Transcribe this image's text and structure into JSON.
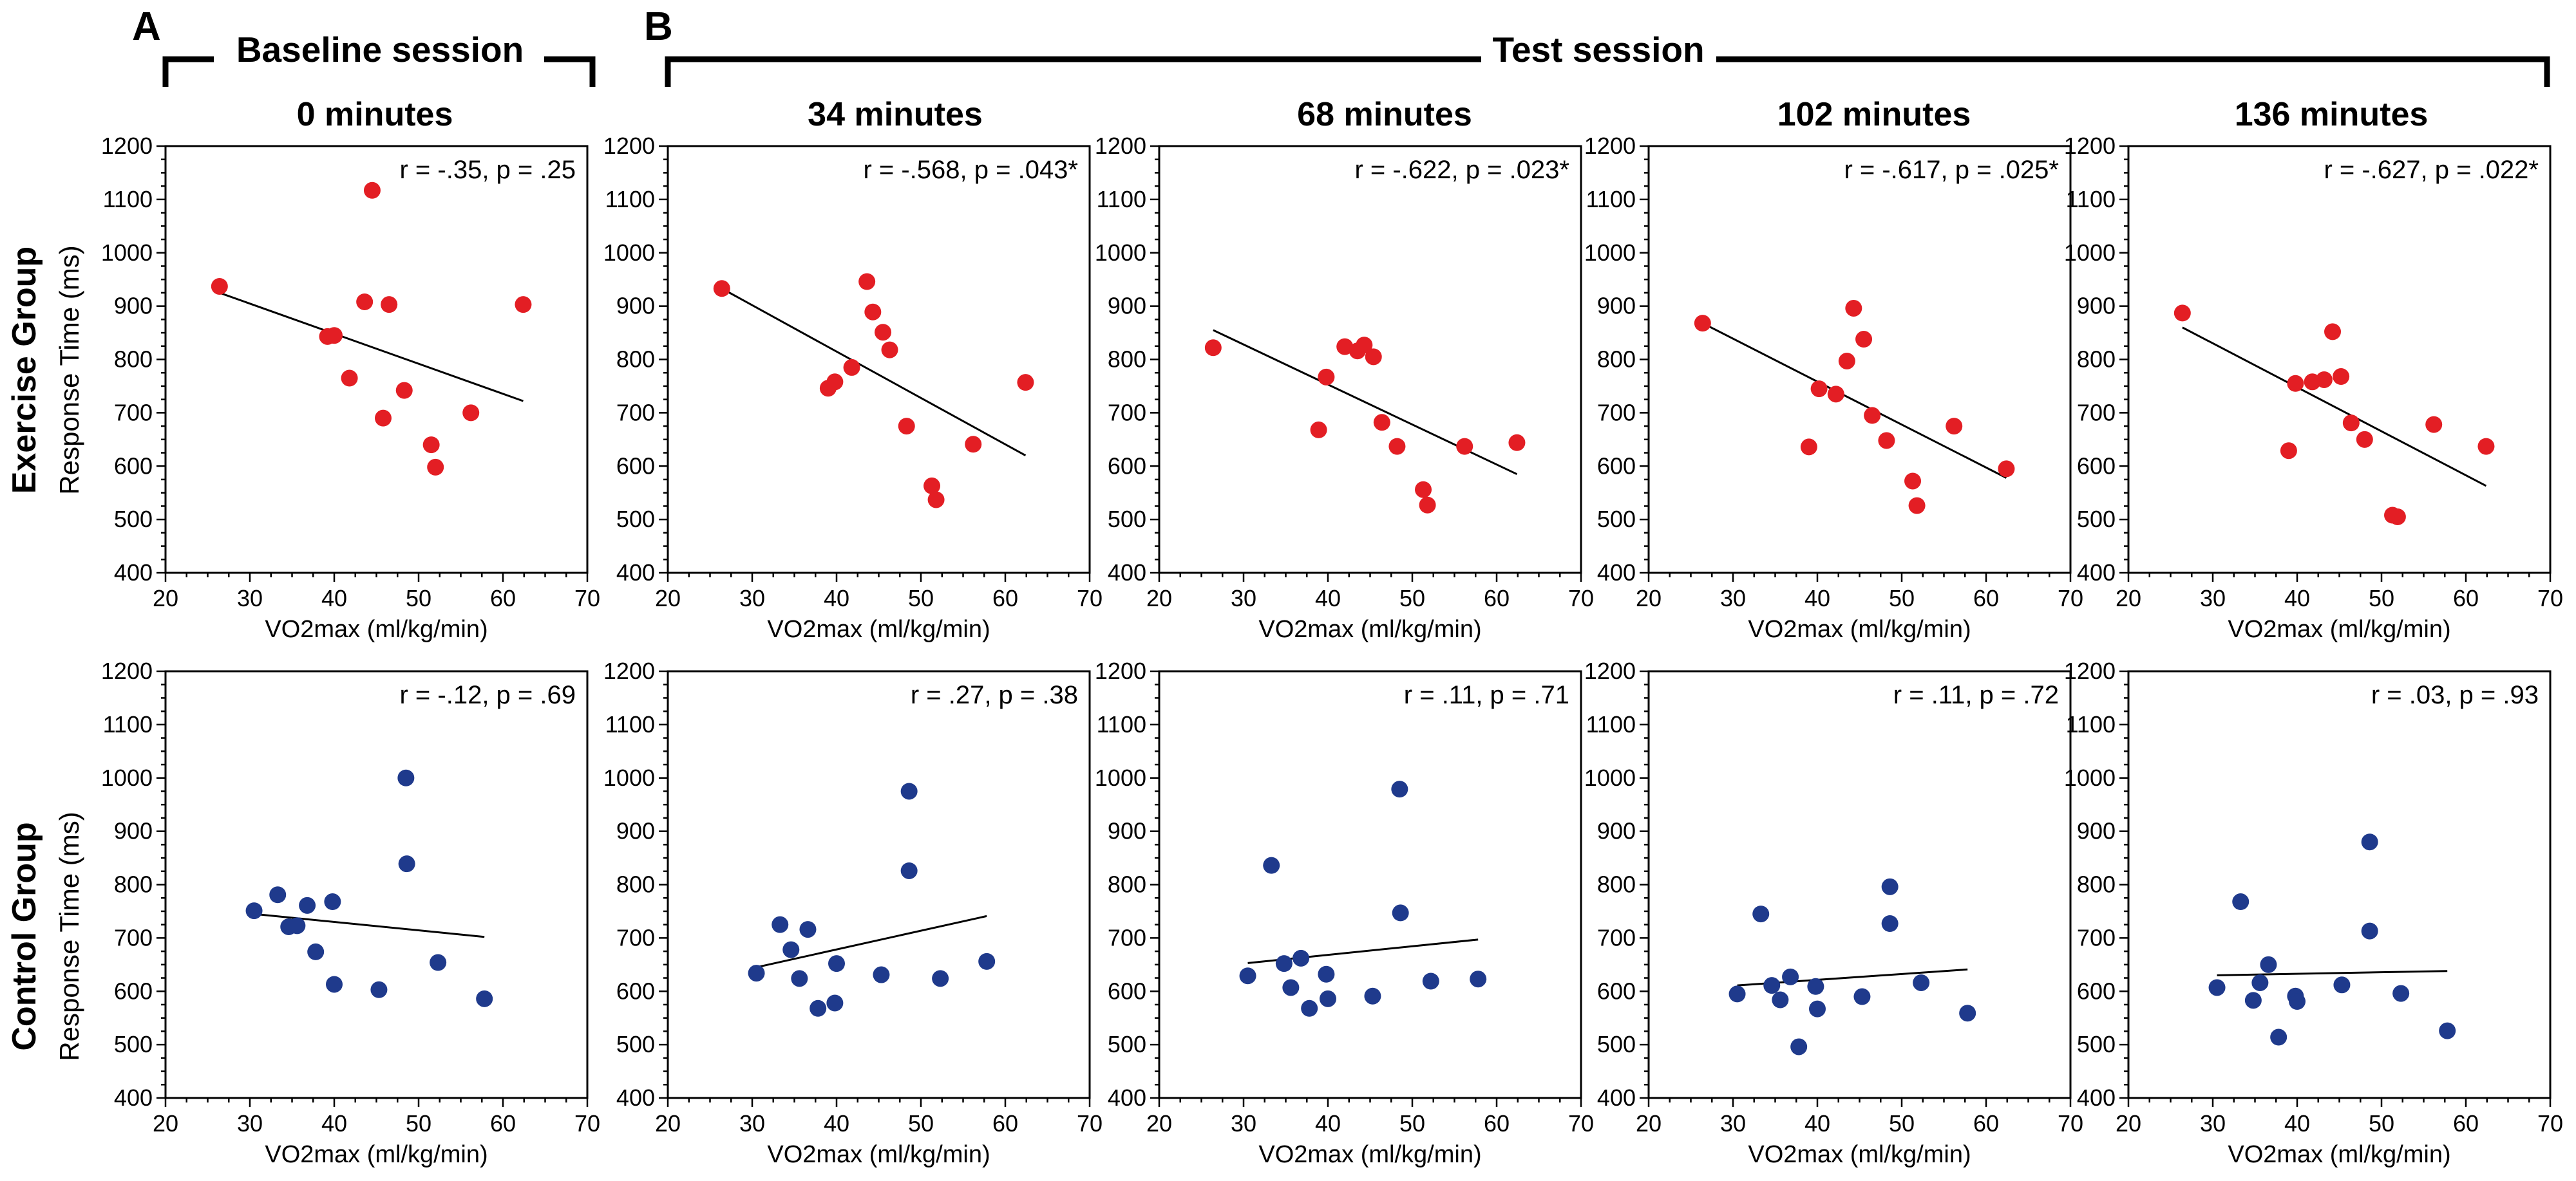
{
  "figure": {
    "panel_a": "A",
    "panel_b": "B",
    "baseline_title": "Baseline session",
    "test_title": "Test session",
    "row_titles": [
      "Exercise Group",
      "Control Group"
    ],
    "ylabel": "Response Time (ms)",
    "xlabel": "VO2max (ml/kg/min)",
    "col_titles": [
      "0 minutes",
      "34 minutes",
      "68 minutes",
      "102 minutes",
      "136 minutes"
    ],
    "colors": {
      "exercise": "#e31e24",
      "control": "#1f3a8c"
    }
  },
  "chart_data": [
    {
      "type": "scatter",
      "group": "Exercise Group",
      "title": "0 minutes",
      "stat": "r = -.35, p = .25",
      "xlim": [
        20,
        70
      ],
      "ylim": [
        400,
        1200
      ],
      "xticks": [
        20,
        30,
        40,
        50,
        60,
        70
      ],
      "yticks": [
        400,
        500,
        600,
        700,
        800,
        900,
        1000,
        1100,
        1200
      ],
      "xlabel": "VO2max (ml/kg/min)",
      "ylabel": "Response Time (ms)",
      "points": [
        [
          26.4,
          937
        ],
        [
          39.2,
          843
        ],
        [
          40.0,
          845
        ],
        [
          41.8,
          765
        ],
        [
          43.6,
          908
        ],
        [
          44.5,
          1117
        ],
        [
          45.8,
          690
        ],
        [
          46.5,
          903
        ],
        [
          48.3,
          742
        ],
        [
          51.5,
          640
        ],
        [
          52.0,
          598
        ],
        [
          56.2,
          700
        ],
        [
          62.4,
          903
        ]
      ],
      "trend": [
        [
          26.4,
          925
        ],
        [
          62.4,
          722
        ]
      ]
    },
    {
      "type": "scatter",
      "group": "Exercise Group",
      "title": "34 minutes",
      "stat": "r = -.568, p = .043*",
      "xlim": [
        20,
        70
      ],
      "ylim": [
        400,
        1200
      ],
      "xticks": [
        20,
        30,
        40,
        50,
        60,
        70
      ],
      "yticks": [
        400,
        500,
        600,
        700,
        800,
        900,
        1000,
        1100,
        1200
      ],
      "xlabel": "VO2max (ml/kg/min)",
      "ylabel": "Response Time (ms)",
      "points": [
        [
          26.4,
          933
        ],
        [
          39.0,
          746
        ],
        [
          39.8,
          758
        ],
        [
          41.8,
          785
        ],
        [
          43.6,
          946
        ],
        [
          44.3,
          889
        ],
        [
          45.5,
          851
        ],
        [
          46.3,
          818
        ],
        [
          48.3,
          675
        ],
        [
          51.3,
          563
        ],
        [
          51.8,
          537
        ],
        [
          56.2,
          641
        ],
        [
          62.4,
          757
        ]
      ],
      "trend": [
        [
          26.4,
          933
        ],
        [
          62.4,
          620
        ]
      ]
    },
    {
      "type": "scatter",
      "group": "Exercise Group",
      "title": "68 minutes",
      "stat": "r = -.622, p = .023*",
      "xlim": [
        20,
        70
      ],
      "ylim": [
        400,
        1200
      ],
      "xticks": [
        20,
        30,
        40,
        50,
        60,
        70
      ],
      "yticks": [
        400,
        500,
        600,
        700,
        800,
        900,
        1000,
        1100,
        1200
      ],
      "xlabel": "VO2max (ml/kg/min)",
      "ylabel": "Response Time (ms)",
      "points": [
        [
          26.4,
          822
        ],
        [
          38.9,
          668
        ],
        [
          39.8,
          767
        ],
        [
          42.0,
          824
        ],
        [
          43.5,
          816
        ],
        [
          44.3,
          827
        ],
        [
          45.4,
          805
        ],
        [
          46.4,
          682
        ],
        [
          48.2,
          637
        ],
        [
          51.3,
          556
        ],
        [
          51.8,
          527
        ],
        [
          56.2,
          637
        ],
        [
          62.4,
          644
        ]
      ],
      "trend": [
        [
          26.4,
          855
        ],
        [
          62.4,
          585
        ]
      ]
    },
    {
      "type": "scatter",
      "group": "Exercise Group",
      "title": "102 minutes",
      "stat": "r = -.617, p = .025*",
      "xlim": [
        20,
        70
      ],
      "ylim": [
        400,
        1200
      ],
      "xticks": [
        20,
        30,
        40,
        50,
        60,
        70
      ],
      "yticks": [
        400,
        500,
        600,
        700,
        800,
        900,
        1000,
        1100,
        1200
      ],
      "xlabel": "VO2max (ml/kg/min)",
      "ylabel": "Response Time (ms)",
      "points": [
        [
          26.4,
          868
        ],
        [
          39.0,
          636
        ],
        [
          40.2,
          745
        ],
        [
          42.2,
          735
        ],
        [
          43.5,
          797
        ],
        [
          44.3,
          896
        ],
        [
          45.5,
          838
        ],
        [
          46.5,
          695
        ],
        [
          48.2,
          648
        ],
        [
          51.3,
          572
        ],
        [
          51.8,
          526
        ],
        [
          56.2,
          675
        ],
        [
          62.4,
          595
        ]
      ],
      "trend": [
        [
          26.4,
          868
        ],
        [
          62.4,
          578
        ]
      ]
    },
    {
      "type": "scatter",
      "group": "Exercise Group",
      "title": "136 minutes",
      "stat": "r = -.627, p = .022*",
      "xlim": [
        20,
        70
      ],
      "ylim": [
        400,
        1200
      ],
      "xticks": [
        20,
        30,
        40,
        50,
        60,
        70
      ],
      "yticks": [
        400,
        500,
        600,
        700,
        800,
        900,
        1000,
        1100,
        1200
      ],
      "xlabel": "VO2max (ml/kg/min)",
      "ylabel": "Response Time (ms)",
      "points": [
        [
          26.4,
          887
        ],
        [
          39.0,
          629
        ],
        [
          39.8,
          755
        ],
        [
          41.8,
          758
        ],
        [
          43.2,
          762
        ],
        [
          44.2,
          852
        ],
        [
          45.2,
          768
        ],
        [
          46.4,
          681
        ],
        [
          48.0,
          650
        ],
        [
          51.3,
          508
        ],
        [
          51.9,
          505
        ],
        [
          56.2,
          678
        ],
        [
          62.4,
          637
        ]
      ],
      "trend": [
        [
          26.4,
          860
        ],
        [
          62.4,
          563
        ]
      ]
    },
    {
      "type": "scatter",
      "group": "Control Group",
      "title": "0 minutes",
      "stat": "r = -.12, p = .69",
      "xlim": [
        20,
        70
      ],
      "ylim": [
        400,
        1200
      ],
      "xticks": [
        20,
        30,
        40,
        50,
        60,
        70
      ],
      "yticks": [
        400,
        500,
        600,
        700,
        800,
        900,
        1000,
        1100,
        1200
      ],
      "xlabel": "VO2max (ml/kg/min)",
      "ylabel": "Response Time (ms)",
      "points": [
        [
          30.5,
          751
        ],
        [
          33.3,
          781
        ],
        [
          34.6,
          721
        ],
        [
          35.6,
          723
        ],
        [
          36.8,
          761
        ],
        [
          37.8,
          674
        ],
        [
          39.8,
          768
        ],
        [
          40.0,
          613
        ],
        [
          45.3,
          603
        ],
        [
          48.5,
          1000
        ],
        [
          48.6,
          839
        ],
        [
          52.3,
          654
        ],
        [
          57.8,
          586
        ]
      ],
      "trend": [
        [
          30.5,
          745
        ],
        [
          57.8,
          702
        ]
      ]
    },
    {
      "type": "scatter",
      "group": "Control Group",
      "title": "34 minutes",
      "stat": "r = .27, p = .38",
      "xlim": [
        20,
        70
      ],
      "ylim": [
        400,
        1200
      ],
      "xticks": [
        20,
        30,
        40,
        50,
        60,
        70
      ],
      "yticks": [
        400,
        500,
        600,
        700,
        800,
        900,
        1000,
        1100,
        1200
      ],
      "xlabel": "VO2max (ml/kg/min)",
      "ylabel": "Response Time (ms)",
      "points": [
        [
          30.5,
          634
        ],
        [
          33.3,
          725
        ],
        [
          34.6,
          678
        ],
        [
          35.6,
          624
        ],
        [
          36.6,
          716
        ],
        [
          37.8,
          568
        ],
        [
          39.8,
          578
        ],
        [
          40.0,
          652
        ],
        [
          45.3,
          631
        ],
        [
          48.6,
          975
        ],
        [
          48.6,
          826
        ],
        [
          52.3,
          624
        ],
        [
          57.8,
          656
        ]
      ],
      "trend": [
        [
          30.5,
          645
        ],
        [
          57.8,
          741
        ]
      ]
    },
    {
      "type": "scatter",
      "group": "Control Group",
      "title": "68 minutes",
      "stat": "r = .11, p = .71",
      "xlim": [
        20,
        70
      ],
      "ylim": [
        400,
        1200
      ],
      "xticks": [
        20,
        30,
        40,
        50,
        60,
        70
      ],
      "yticks": [
        400,
        500,
        600,
        700,
        800,
        900,
        1000,
        1100,
        1200
      ],
      "xlabel": "VO2max (ml/kg/min)",
      "ylabel": "Response Time (ms)",
      "points": [
        [
          30.5,
          629
        ],
        [
          33.3,
          836
        ],
        [
          35.6,
          607
        ],
        [
          36.8,
          662
        ],
        [
          37.8,
          568
        ],
        [
          39.8,
          632
        ],
        [
          40.0,
          586
        ],
        [
          45.3,
          591
        ],
        [
          48.5,
          979
        ],
        [
          48.6,
          747
        ],
        [
          52.2,
          619
        ],
        [
          57.8,
          623
        ],
        [
          34.8,
          652
        ]
      ],
      "trend": [
        [
          30.5,
          653
        ],
        [
          57.8,
          697
        ]
      ]
    },
    {
      "type": "scatter",
      "group": "Control Group",
      "title": "102 minutes",
      "stat": "r = .11, p = .72",
      "xlim": [
        20,
        70
      ],
      "ylim": [
        400,
        1200
      ],
      "xticks": [
        20,
        30,
        40,
        50,
        60,
        70
      ],
      "yticks": [
        400,
        500,
        600,
        700,
        800,
        900,
        1000,
        1100,
        1200
      ],
      "xlabel": "VO2max (ml/kg/min)",
      "ylabel": "Response Time (ms)",
      "points": [
        [
          30.5,
          595
        ],
        [
          33.3,
          745
        ],
        [
          34.6,
          611
        ],
        [
          35.6,
          584
        ],
        [
          36.8,
          627
        ],
        [
          37.8,
          496
        ],
        [
          39.8,
          609
        ],
        [
          40.0,
          567
        ],
        [
          45.3,
          590
        ],
        [
          48.6,
          796
        ],
        [
          48.6,
          727
        ],
        [
          52.3,
          616
        ],
        [
          57.8,
          559
        ]
      ],
      "trend": [
        [
          30.5,
          611
        ],
        [
          57.8,
          641
        ]
      ]
    },
    {
      "type": "scatter",
      "group": "Control Group",
      "title": "136 minutes",
      "stat": "r = .03, p = .93",
      "xlim": [
        20,
        70
      ],
      "ylim": [
        400,
        1200
      ],
      "xticks": [
        20,
        30,
        40,
        50,
        60,
        70
      ],
      "yticks": [
        400,
        500,
        600,
        700,
        800,
        900,
        1000,
        1100,
        1200
      ],
      "xlabel": "VO2max (ml/kg/min)",
      "ylabel": "Response Time (ms)",
      "points": [
        [
          30.5,
          607
        ],
        [
          33.3,
          768
        ],
        [
          34.8,
          583
        ],
        [
          35.6,
          616
        ],
        [
          36.6,
          650
        ],
        [
          37.8,
          514
        ],
        [
          39.8,
          591
        ],
        [
          40.0,
          581
        ],
        [
          45.3,
          612
        ],
        [
          48.6,
          880
        ],
        [
          48.6,
          713
        ],
        [
          52.3,
          596
        ],
        [
          57.8,
          526
        ]
      ],
      "trend": [
        [
          30.5,
          630
        ],
        [
          57.8,
          638
        ]
      ]
    }
  ]
}
